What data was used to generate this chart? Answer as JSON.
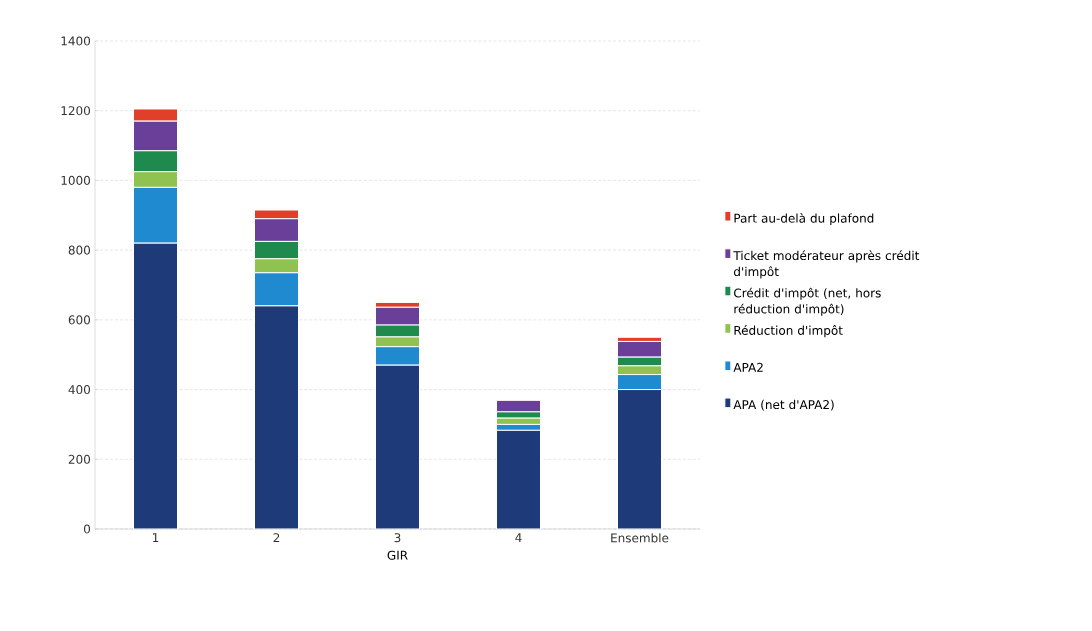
{
  "chart_data": {
    "type": "bar",
    "stacked": true,
    "xlabel": "GIR",
    "categories": [
      "1",
      "2",
      "3",
      "4",
      "Ensemble"
    ],
    "ylim": [
      0,
      1400
    ],
    "yticks": [
      0,
      200,
      400,
      600,
      800,
      1000,
      1200,
      1400
    ],
    "grid": "y",
    "legend": "right",
    "series": [
      {
        "name": "APA (net d'APA2)",
        "color": "#1f3a78",
        "values": [
          820,
          640,
          470,
          283,
          400
        ]
      },
      {
        "name": "APA2",
        "color": "#1f8ad0",
        "values": [
          160,
          95,
          53,
          17,
          43
        ]
      },
      {
        "name": "Réduction d'impôt",
        "color": "#8fc250",
        "values": [
          45,
          40,
          28,
          18,
          25
        ]
      },
      {
        "name": "Crédit d'impôt (net, hors réduction d'impôt)",
        "color": "#1e8a4e",
        "values": [
          60,
          50,
          34,
          18,
          25
        ]
      },
      {
        "name": "Ticket modérateur après crédit d'impôt",
        "color": "#6a3f9a",
        "values": [
          85,
          65,
          51,
          33,
          45
        ]
      },
      {
        "name": "Part au-delà du plafond",
        "color": "#e0402a",
        "values": [
          35,
          25,
          14,
          0,
          12
        ]
      }
    ]
  }
}
